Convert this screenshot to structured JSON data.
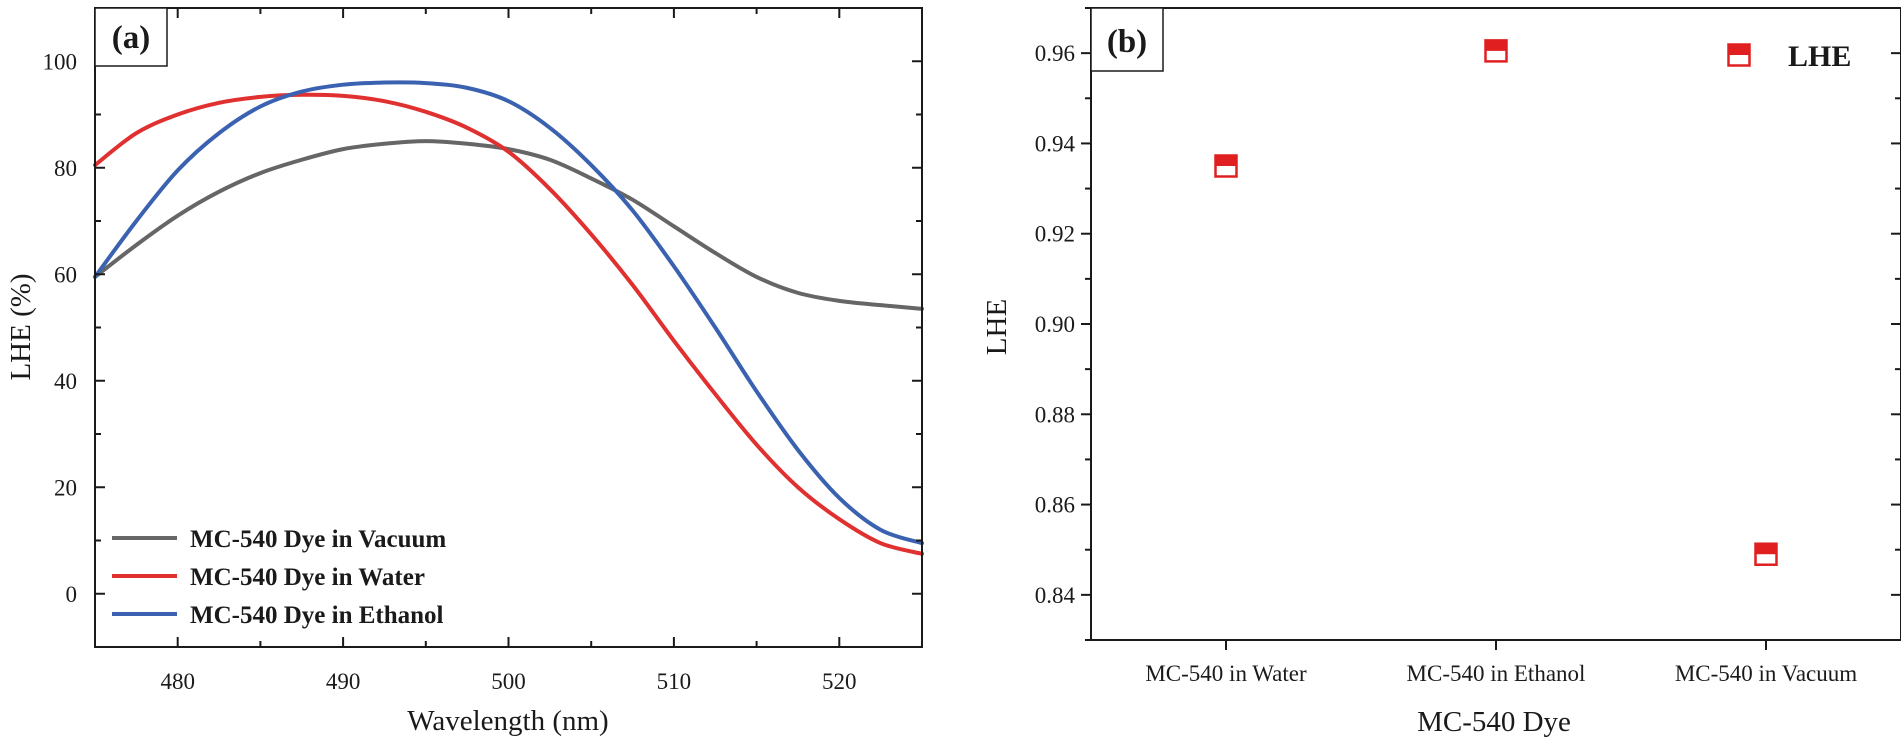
{
  "chart_data": [
    {
      "type": "line",
      "panel_label": "(a)",
      "xlabel": "Wavelength (nm)",
      "ylabel": "LHE (%)",
      "xlim": [
        475,
        525
      ],
      "ylim": [
        -10,
        110
      ],
      "x_ticks": [
        480,
        490,
        500,
        510,
        520
      ],
      "y_ticks": [
        0,
        20,
        40,
        60,
        80,
        100
      ],
      "x_tick_labels": [
        "480",
        "490",
        "500",
        "510",
        "520"
      ],
      "y_tick_labels": [
        "0",
        "20",
        "40",
        "60",
        "80",
        "100"
      ],
      "legend_position": "bottom-left",
      "grid": false,
      "series": [
        {
          "name": "MC-540 Dye in Vacuum",
          "color": "#666666",
          "x": [
            475,
            477.5,
            480,
            482.5,
            485,
            487.5,
            490,
            492.5,
            495,
            497.5,
            500,
            502.5,
            505,
            507.5,
            510,
            512.5,
            515,
            517.5,
            520,
            522.5,
            525
          ],
          "y": [
            59.5,
            65.5,
            71,
            75.5,
            79,
            81.5,
            83.5,
            84.5,
            85,
            84.5,
            83.5,
            81.5,
            78,
            74,
            69,
            64,
            59.5,
            56.5,
            55,
            54.2,
            53.5
          ]
        },
        {
          "name": "MC-540 Dye in Water",
          "color": "#e03030",
          "x": [
            475,
            477.5,
            480,
            482.5,
            485,
            487.5,
            490,
            492.5,
            495,
            497.5,
            500,
            502.5,
            505,
            507.5,
            510,
            512.5,
            515,
            517.5,
            520,
            522.5,
            525
          ],
          "y": [
            80.5,
            86.5,
            90,
            92.2,
            93.3,
            93.7,
            93.5,
            92.5,
            90.5,
            87.5,
            83,
            76,
            67.5,
            58,
            47.5,
            37.5,
            28,
            20,
            14,
            9.5,
            7.5
          ]
        },
        {
          "name": "MC-540 Dye in Ethanol",
          "color": "#3a62b0",
          "x": [
            475,
            477.5,
            480,
            482.5,
            485,
            487.5,
            490,
            492.5,
            495,
            497.5,
            500,
            502.5,
            505,
            507.5,
            510,
            512.5,
            515,
            517.5,
            520,
            522.5,
            525
          ],
          "y": [
            59.5,
            70,
            79.5,
            86.5,
            91.5,
            94.3,
            95.6,
            96,
            95.9,
            95,
            92.5,
            87.5,
            80.5,
            72,
            61.5,
            50,
            38,
            27,
            18,
            12,
            9.5
          ]
        }
      ]
    },
    {
      "type": "scatter",
      "panel_label": "(b)",
      "xlabel": "MC-540 Dye",
      "ylabel": "LHE",
      "categories": [
        "MC-540 in Water",
        "MC-540 in Ethanol",
        "MC-540 in Vacuum"
      ],
      "ylim": [
        0.83,
        0.97
      ],
      "y_ticks": [
        0.84,
        0.86,
        0.88,
        0.9,
        0.92,
        0.94,
        0.96
      ],
      "y_tick_labels": [
        "0.84",
        "0.86",
        "0.88",
        "0.90",
        "0.92",
        "0.94",
        "0.96"
      ],
      "legend_position": "top-right",
      "grid": false,
      "series": [
        {
          "name": "LHE",
          "color": "#e02020",
          "values": [
            0.935,
            0.9605,
            0.849
          ]
        }
      ]
    }
  ]
}
